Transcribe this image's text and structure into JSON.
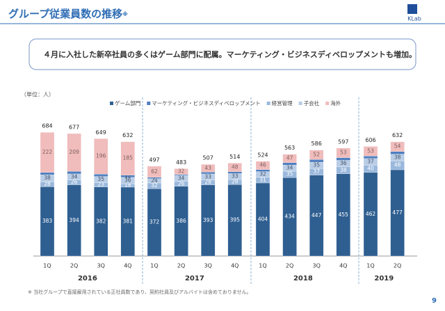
{
  "header": {
    "title": "グループ従業員数の推移",
    "title_note": "※",
    "logo": "KLab"
  },
  "message": "４月に入社した新卒社員の多くはゲーム部門に配属。マーケティング・ビジネスディベロップメントも増加。",
  "footnote": "※ 当社グループで直接雇用されている正社員数であり、契約社員及びアルバイトは含めておりません。",
  "page_number": "9",
  "chart_data": {
    "type": "stacked_bar",
    "unit_label": "（単位：人）",
    "groups": [
      {
        "label": "2016",
        "categories": [
          "1Q",
          "2Q",
          "3Q",
          "4Q"
        ]
      },
      {
        "label": "2017",
        "categories": [
          "1Q",
          "2Q",
          "3Q",
          "4Q"
        ]
      },
      {
        "label": "2018",
        "categories": [
          "1Q",
          "2Q",
          "3Q",
          "4Q"
        ]
      },
      {
        "label": "2019",
        "categories": [
          "1Q",
          "2Q"
        ]
      }
    ],
    "ylim": [
      0,
      700
    ],
    "legend_order": [
      0,
      3,
      1,
      2,
      4
    ],
    "series": [
      {
        "name": "ゲーム部門",
        "color": "#2f5f91",
        "label_color": "#ffffff",
        "values": [
          383,
          394,
          382,
          381,
          372,
          386,
          393,
          395,
          404,
          434,
          447,
          455,
          462,
          477
        ]
      },
      {
        "name": "経営管理",
        "color": "#9ab8dc",
        "label_color": "#ffffff",
        "values": [
          28,
          26,
          23,
          18,
          32,
          26,
          28,
          28,
          31,
          35,
          37,
          38,
          40,
          48
        ]
      },
      {
        "name": "子会社",
        "color": "#b9cde6",
        "label_color": "#44546a",
        "values": [
          38,
          34,
          35,
          36,
          24,
          34,
          33,
          33,
          32,
          34,
          35,
          36,
          37,
          38
        ]
      },
      {
        "name": "マーケティング・ビジネスディベロップメント",
        "color": "#4f7fbf",
        "label_color": "#44546a",
        "values": [
          13,
          14,
          13,
          12,
          7,
          5,
          10,
          10,
          11,
          13,
          15,
          15,
          14,
          15
        ],
        "value_labels": [
          null,
          null,
          null,
          "12",
          "7",
          null,
          null,
          null,
          null,
          null,
          null,
          null,
          null,
          null
        ]
      },
      {
        "name": "海外",
        "color": "#f0bcbc",
        "label_color": "#7f5f5f",
        "values": [
          222,
          209,
          196,
          185,
          62,
          32,
          43,
          48,
          46,
          47,
          52,
          53,
          53,
          54
        ]
      }
    ],
    "totals": [
      684,
      677,
      649,
      632,
      497,
      483,
      507,
      514,
      524,
      563,
      586,
      597,
      606,
      632
    ]
  }
}
